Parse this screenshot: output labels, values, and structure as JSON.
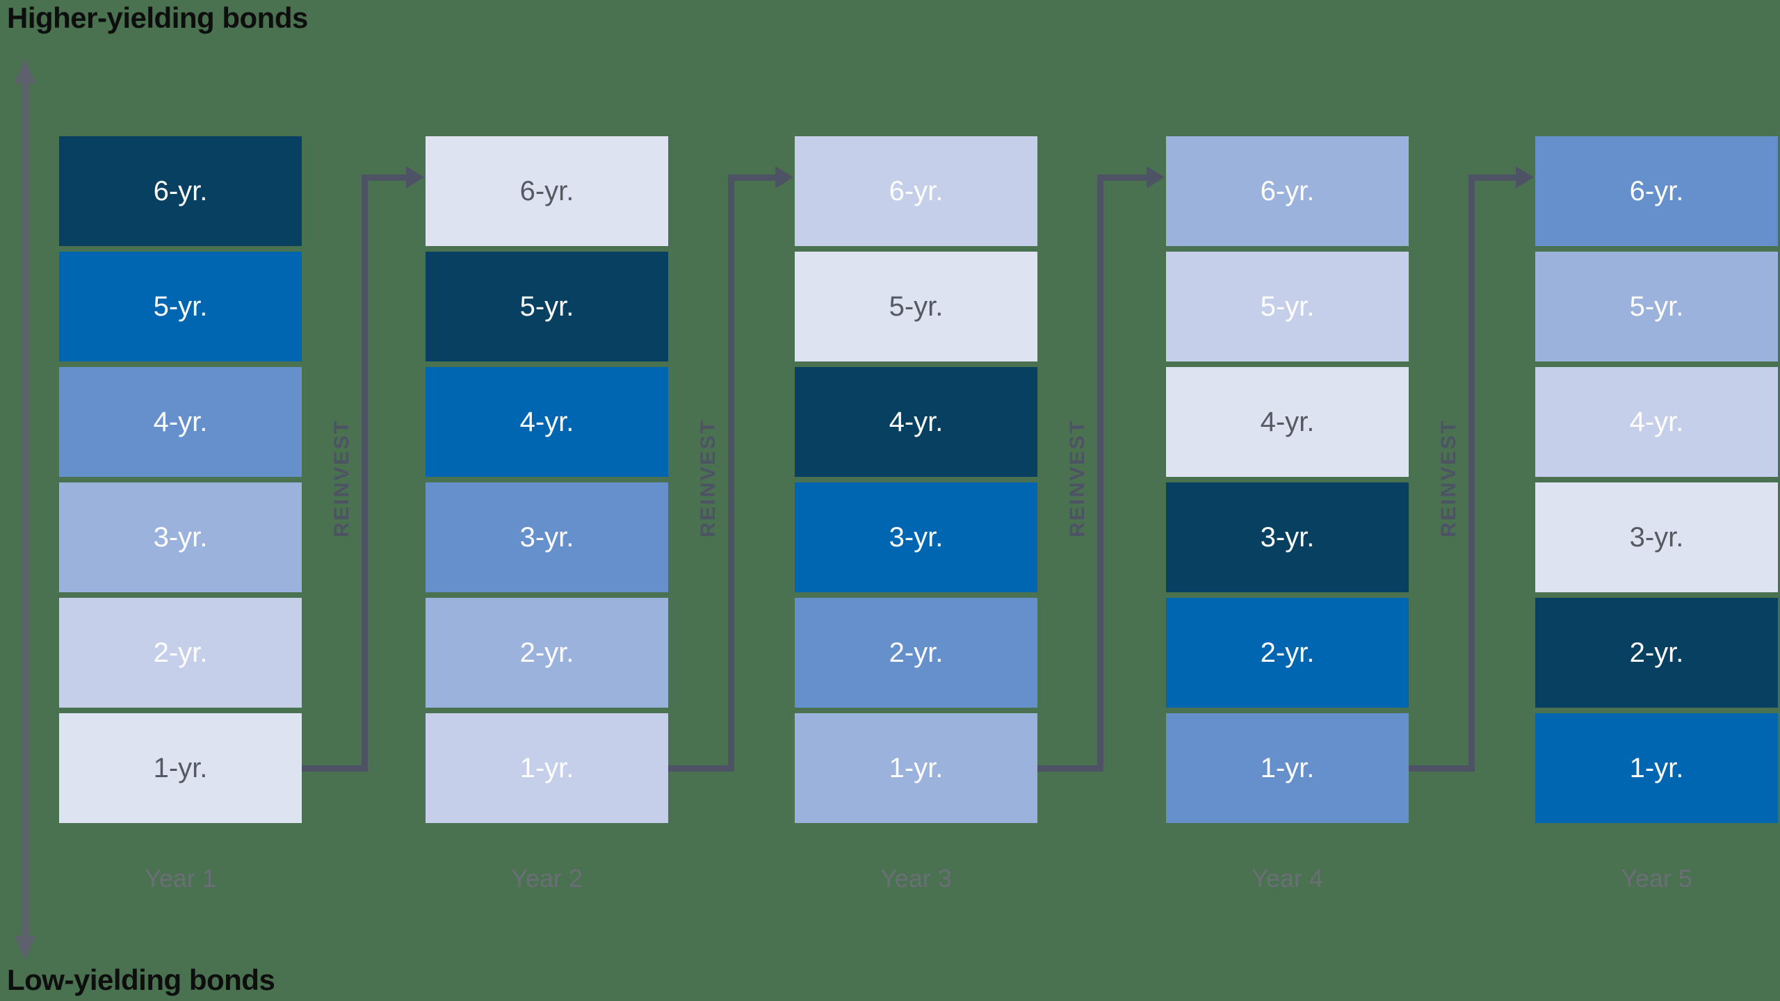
{
  "title_top": "Higher-yielding bonds",
  "title_bottom": "Low-yielding bonds",
  "reinvest_label": "REINVEST",
  "colors": {
    "background": "#4a7150",
    "navy": "#084061",
    "blue": "#0066b1",
    "medium_blue": "#6590cc",
    "light_medium_blue": "#9bb2dc",
    "periwinkle": "#c5cfe9",
    "pale": "#dee3f1",
    "arrow": "#4d5365",
    "axis": "#5c616c",
    "year_label_color": "#6a6f76",
    "dark_text": "#555a62",
    "light_text": "#ffffff",
    "title_text": "#0e0e0e"
  },
  "columns": [
    {
      "year_label": "Year 1",
      "boxes": [
        {
          "label": "6-yr.",
          "color": "navy"
        },
        {
          "label": "5-yr.",
          "color": "blue"
        },
        {
          "label": "4-yr.",
          "color": "medium_blue"
        },
        {
          "label": "3-yr.",
          "color": "light_medium_blue"
        },
        {
          "label": "2-yr.",
          "color": "periwinkle"
        },
        {
          "label": "1-yr.",
          "color": "pale"
        }
      ]
    },
    {
      "year_label": "Year 2",
      "boxes": [
        {
          "label": "6-yr.",
          "color": "pale"
        },
        {
          "label": "5-yr.",
          "color": "navy"
        },
        {
          "label": "4-yr.",
          "color": "blue"
        },
        {
          "label": "3-yr.",
          "color": "medium_blue"
        },
        {
          "label": "2-yr.",
          "color": "light_medium_blue"
        },
        {
          "label": "1-yr.",
          "color": "periwinkle"
        }
      ]
    },
    {
      "year_label": "Year 3",
      "boxes": [
        {
          "label": "6-yr.",
          "color": "periwinkle"
        },
        {
          "label": "5-yr.",
          "color": "pale"
        },
        {
          "label": "4-yr.",
          "color": "navy"
        },
        {
          "label": "3-yr.",
          "color": "blue"
        },
        {
          "label": "2-yr.",
          "color": "medium_blue"
        },
        {
          "label": "1-yr.",
          "color": "light_medium_blue"
        }
      ]
    },
    {
      "year_label": "Year 4",
      "boxes": [
        {
          "label": "6-yr.",
          "color": "light_medium_blue"
        },
        {
          "label": "5-yr.",
          "color": "periwinkle"
        },
        {
          "label": "4-yr.",
          "color": "pale"
        },
        {
          "label": "3-yr.",
          "color": "navy"
        },
        {
          "label": "2-yr.",
          "color": "blue"
        },
        {
          "label": "1-yr.",
          "color": "medium_blue"
        }
      ]
    },
    {
      "year_label": "Year 5",
      "boxes": [
        {
          "label": "6-yr.",
          "color": "medium_blue"
        },
        {
          "label": "5-yr.",
          "color": "light_medium_blue"
        },
        {
          "label": "4-yr.",
          "color": "periwinkle"
        },
        {
          "label": "3-yr.",
          "color": "pale"
        },
        {
          "label": "2-yr.",
          "color": "navy"
        },
        {
          "label": "1-yr.",
          "color": "blue"
        }
      ]
    }
  ]
}
